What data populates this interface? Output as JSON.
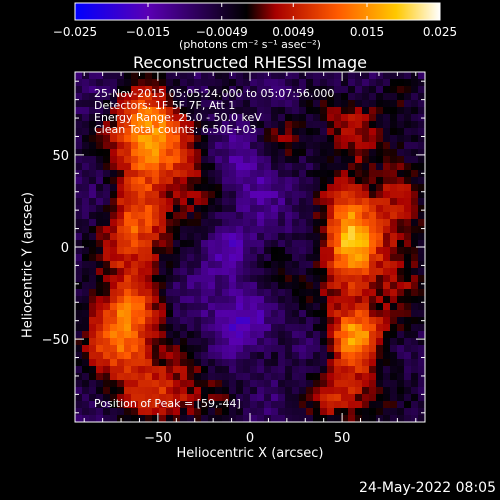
{
  "chart_data": {
    "type": "heatmap",
    "title": "Reconstructed RHESSI Image",
    "xlabel": "Heliocentric X (arcsec)",
    "ylabel": "Heliocentric Y (arcsec)",
    "xlim": [
      -95,
      95
    ],
    "ylim": [
      -95,
      95
    ],
    "x_ticks": [
      -50,
      0,
      50
    ],
    "y_ticks": [
      50,
      0,
      -50
    ],
    "colorbar": {
      "title": "(photons cm⁻² s⁻¹ asec⁻²)",
      "range": [
        -0.025,
        0.025
      ],
      "tick_labels": [
        "−0.025",
        "−0.015",
        "−0.0049",
        "0.0049",
        "0.015",
        "0.025"
      ],
      "tick_values": [
        -0.025,
        -0.015,
        -0.0049,
        0.0049,
        0.015,
        0.025
      ],
      "colormap_stops": [
        "#0000ff",
        "#5a00b4",
        "#000000",
        "#a80000",
        "#ff5a00",
        "#ffc800",
        "#ffffff"
      ]
    },
    "annotations": [
      "25-Nov-2015 05:05:24.000 to 05:07:56.000",
      "Detectors: 1F 5F 7F, Att 1",
      "Energy Range: 25.0 - 50.0 keV",
      "Clean    Total counts: 6.50E+03"
    ],
    "peak_label": "Position of Peak = [59,-44]",
    "sources": [
      {
        "x": -55,
        "y": 60,
        "sx": 14,
        "sy": 18,
        "amp": 0.024
      },
      {
        "x": -62,
        "y": 10,
        "sx": 11,
        "sy": 16,
        "amp": 0.017
      },
      {
        "x": -68,
        "y": -45,
        "sx": 14,
        "sy": 22,
        "amp": 0.021
      },
      {
        "x": -40,
        "y": -80,
        "sx": 16,
        "sy": 12,
        "amp": 0.012
      },
      {
        "x": -30,
        "y": 30,
        "sx": 12,
        "sy": 16,
        "amp": 0.01
      },
      {
        "x": 55,
        "y": 5,
        "sx": 11,
        "sy": 22,
        "amp": 0.025
      },
      {
        "x": 57,
        "y": -48,
        "sx": 10,
        "sy": 12,
        "amp": 0.021
      },
      {
        "x": 52,
        "y": -80,
        "sx": 14,
        "sy": 12,
        "amp": 0.013
      },
      {
        "x": 55,
        "y": 68,
        "sx": 12,
        "sy": 12,
        "amp": 0.01
      },
      {
        "x": 82,
        "y": 10,
        "sx": 10,
        "sy": 40,
        "amp": 0.009
      },
      {
        "x": 15,
        "y": -15,
        "sx": 12,
        "sy": 12,
        "amp": 0.008
      },
      {
        "x": 20,
        "y": 58,
        "sx": 10,
        "sy": 10,
        "amp": 0.007
      },
      {
        "x": -5,
        "y": -5,
        "sx": 18,
        "sy": 22,
        "amp": -0.006
      },
      {
        "x": -5,
        "y": -40,
        "sx": 10,
        "sy": 10,
        "amp": -0.009
      },
      {
        "x": -5,
        "y": 42,
        "sx": 14,
        "sy": 12,
        "amp": -0.006
      }
    ],
    "peak_position": [
      59,
      -44
    ]
  },
  "footer": {
    "date": "24-May-2022 08:05"
  }
}
